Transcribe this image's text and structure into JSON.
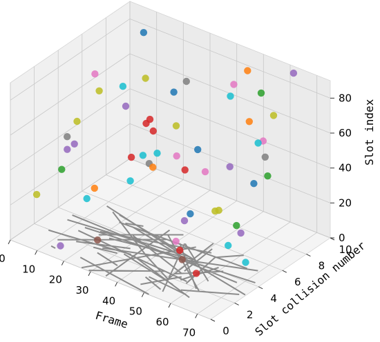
{
  "chart_data": {
    "type": "scatter",
    "projection": "3d",
    "xlabel": "Frame",
    "ylabel": "Slot collision number",
    "zlabel": "Slot index",
    "xlim": [
      0,
      75
    ],
    "ylim": [
      0,
      10
    ],
    "zlim": [
      0,
      90
    ],
    "xticks": [
      "0",
      "10",
      "20",
      "30",
      "40",
      "50",
      "60",
      "70"
    ],
    "yticks": [
      "0",
      "2",
      "4",
      "6",
      "8",
      "10"
    ],
    "zticks": [
      "0",
      "20",
      "40",
      "60",
      "80"
    ],
    "grid": true,
    "legend": "none",
    "palette": [
      "#1f77b4",
      "#ff7f0e",
      "#2ca02c",
      "#d62728",
      "#9467bd",
      "#8c564b",
      "#e377c2",
      "#7f7f7f",
      "#bcbd22",
      "#17becf"
    ],
    "line_color": "#7f7f7f",
    "pane_color": "#f2f2f2",
    "grid_color": "#c8c8c8",
    "columns": [
      {
        "y": 0,
        "z": [
          8,
          23,
          32,
          41,
          52,
          61,
          72,
          83
        ]
      },
      {
        "y": 2,
        "z": [
          5,
          13,
          22,
          34,
          41,
          50,
          60,
          71,
          80,
          88
        ]
      },
      {
        "y": 4,
        "z": [
          3,
          11,
          21,
          30,
          40,
          49,
          58,
          68,
          76,
          84
        ]
      },
      {
        "y": 6,
        "z": [
          2,
          12,
          20,
          31,
          39,
          50,
          61,
          70,
          79,
          88
        ]
      },
      {
        "y": 8,
        "z": [
          4,
          15,
          24,
          36,
          44,
          55,
          63,
          72,
          82,
          90
        ]
      },
      {
        "y": 10,
        "z": [
          6,
          18,
          27,
          38,
          48,
          57,
          66,
          77,
          86
        ]
      }
    ]
  }
}
